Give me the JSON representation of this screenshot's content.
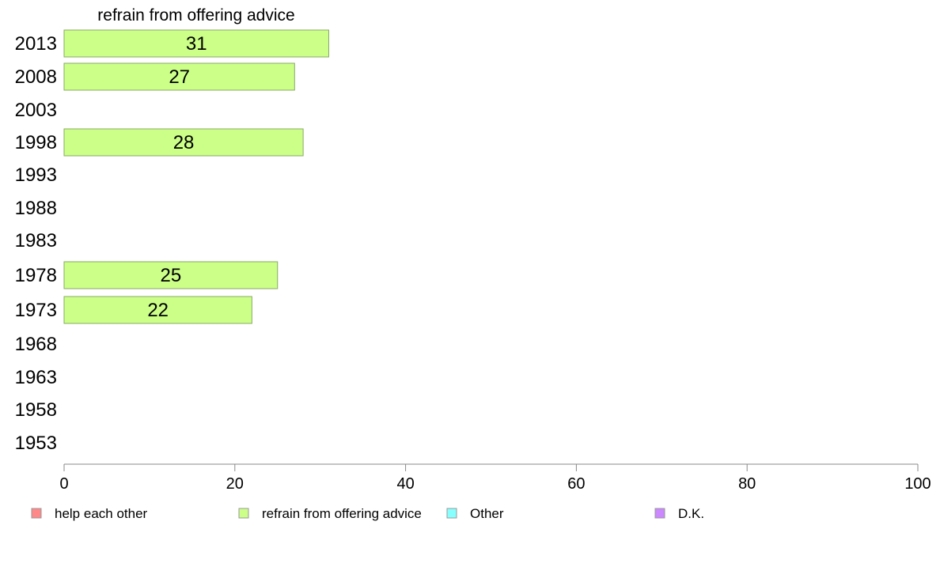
{
  "chart_data": {
    "type": "bar",
    "orientation": "horizontal",
    "title": "",
    "panel_title": "refrain from offering advice",
    "categories": [
      "2013",
      "2008",
      "2003",
      "1998",
      "1993",
      "1988",
      "1983",
      "1978",
      "1973",
      "1968",
      "1963",
      "1958",
      "1953"
    ],
    "series": [
      {
        "name": "refrain from offering advice",
        "color": "#ccff88",
        "values": [
          31,
          27,
          null,
          28,
          null,
          null,
          null,
          25,
          22,
          null,
          null,
          null,
          null
        ]
      }
    ],
    "xlim": [
      0,
      100
    ],
    "xticks": [
      "0",
      "20",
      "40",
      "60",
      "80",
      "100"
    ],
    "legend": {
      "placement": "bottom",
      "items": [
        {
          "label": "help each other",
          "color": "#ff8888"
        },
        {
          "label": "refrain from offering advice",
          "color": "#ccff88"
        },
        {
          "label": "Other",
          "color": "#88ffff"
        },
        {
          "label": "D.K.",
          "color": "#cc88ff"
        }
      ]
    },
    "grid": false
  }
}
